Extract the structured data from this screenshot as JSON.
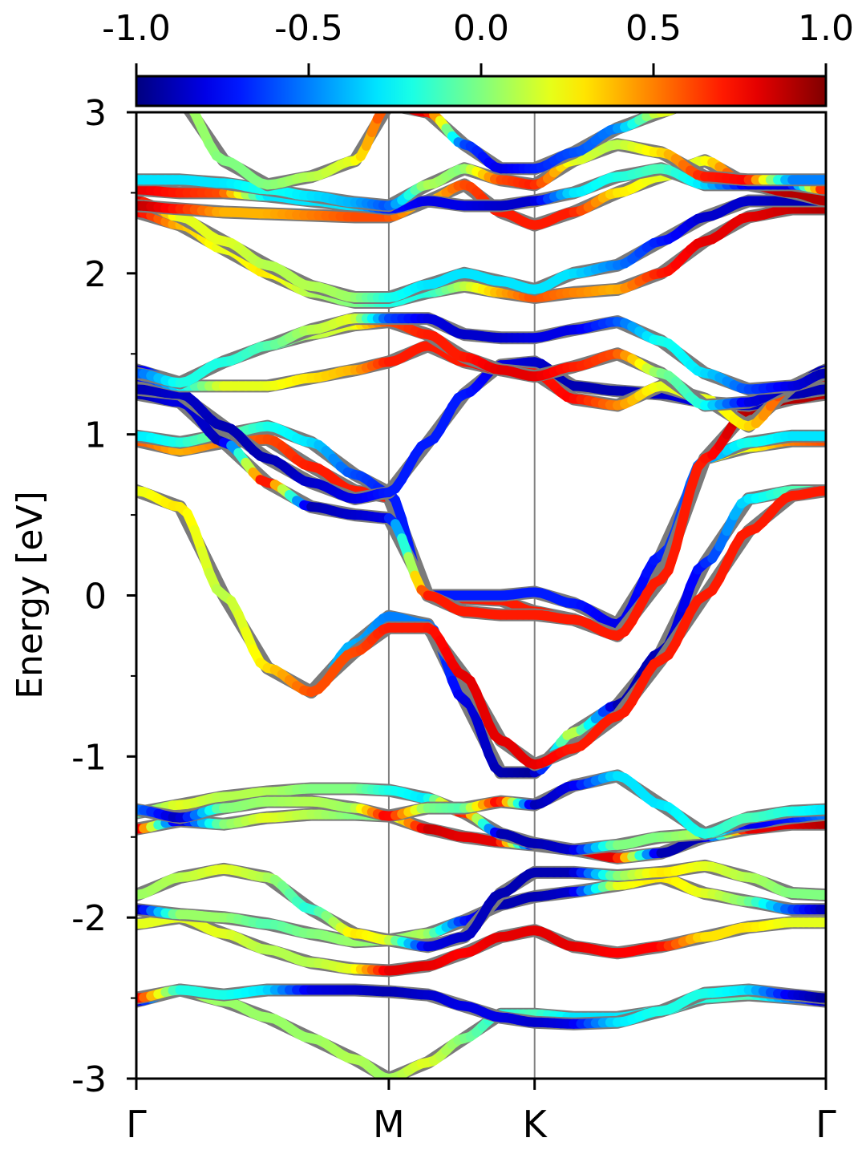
{
  "chart_data": {
    "type": "line",
    "ylabel": "Energy [eV]",
    "ylim": [
      -3,
      3
    ],
    "yticks": [
      -3,
      -2,
      -1,
      0,
      1,
      2,
      3
    ],
    "ytick_labels": [
      "-3",
      "-2",
      "-1",
      "0",
      "1",
      "2",
      "3"
    ],
    "xlim": [
      0,
      4.73
    ],
    "kpoints": [
      {
        "label": "Γ",
        "x": 0
      },
      {
        "label": "M",
        "x": 1.732
      },
      {
        "label": "K",
        "x": 2.732
      },
      {
        "label": "Γ",
        "x": 4.73
      }
    ],
    "colorbar": {
      "colormap": "jet",
      "range": [
        -1.0,
        1.0
      ],
      "ticks": [
        -1.0,
        -0.5,
        0.0,
        0.5,
        1.0
      ],
      "tick_labels": [
        "-1.0",
        "-0.5",
        "0.0",
        "0.5",
        "1.0"
      ]
    },
    "band_points_x": [
      0,
      0.3,
      0.6,
      0.9,
      1.2,
      1.5,
      1.732,
      2.0,
      2.25,
      2.5,
      2.732,
      3.0,
      3.3,
      3.6,
      3.9,
      4.2,
      4.5,
      4.73
    ],
    "bands": [
      {
        "energies": [
          -2.52,
          -2.45,
          -2.52,
          -2.62,
          -2.75,
          -2.88,
          -3.0,
          -2.9,
          -2.75,
          -2.6,
          -2.6,
          -2.62,
          -2.62,
          -2.58,
          -2.5,
          -2.48,
          -2.5,
          -2.52
        ],
        "color_values": [
          -0.9,
          0.1,
          0.05,
          0.05,
          0.05,
          0.1,
          0.05,
          0.2,
          0.0,
          -0.2,
          -0.1,
          -0.3,
          -0.3,
          -0.2,
          -0.2,
          -0.1,
          -0.5,
          -0.9
        ]
      },
      {
        "energies": [
          -2.5,
          -2.45,
          -2.48,
          -2.45,
          -2.45,
          -2.45,
          -2.46,
          -2.48,
          -2.55,
          -2.62,
          -2.65,
          -2.66,
          -2.65,
          -2.58,
          -2.47,
          -2.45,
          -2.48,
          -2.5
        ],
        "color_values": [
          0.8,
          -0.2,
          -0.2,
          -0.3,
          -0.8,
          -0.85,
          -0.9,
          -0.85,
          -0.8,
          -0.8,
          -0.85,
          -0.8,
          -0.3,
          -0.2,
          -0.2,
          -0.3,
          -0.8,
          -0.95
        ]
      },
      {
        "energies": [
          -2.04,
          -2.0,
          -2.1,
          -2.2,
          -2.28,
          -2.32,
          -2.33,
          -2.3,
          -2.22,
          -2.12,
          -2.08,
          -2.18,
          -2.22,
          -2.18,
          -2.12,
          -2.06,
          -2.03,
          -2.03
        ],
        "color_values": [
          0.2,
          0.2,
          0.2,
          0.1,
          0.1,
          0.2,
          0.8,
          0.8,
          0.75,
          0.8,
          0.8,
          0.8,
          0.75,
          0.75,
          0.3,
          0.3,
          0.2,
          0.2
        ]
      },
      {
        "energies": [
          -1.95,
          -1.98,
          -2.0,
          -2.04,
          -2.1,
          -2.15,
          -2.14,
          -2.1,
          -2.02,
          -1.92,
          -1.87,
          -1.84,
          -1.8,
          -1.75,
          -1.85,
          -1.9,
          -1.95,
          -1.95
        ],
        "color_values": [
          -0.95,
          0.05,
          0.05,
          -0.1,
          0.0,
          0.05,
          0.0,
          0.1,
          -0.7,
          -0.9,
          -0.9,
          -0.85,
          0.2,
          0.3,
          0.2,
          0.0,
          -0.6,
          -0.9
        ]
      },
      {
        "energies": [
          -1.86,
          -1.75,
          -1.7,
          -1.75,
          -1.95,
          -2.1,
          -2.14,
          -2.18,
          -2.12,
          -1.85,
          -1.72,
          -1.72,
          -1.74,
          -1.72,
          -1.68,
          -1.75,
          -1.85,
          -1.86
        ],
        "color_values": [
          0.05,
          0.1,
          0.2,
          0.1,
          -0.2,
          0.3,
          0.2,
          -0.8,
          -0.85,
          -0.9,
          -0.9,
          -0.9,
          0.0,
          0.3,
          0.2,
          0.1,
          0.0,
          0.0
        ]
      },
      {
        "energies": [
          -1.45,
          -1.4,
          -1.42,
          -1.38,
          -1.36,
          -1.36,
          -1.37,
          -1.45,
          -1.5,
          -1.53,
          -1.55,
          -1.58,
          -1.63,
          -1.6,
          -1.5,
          -1.45,
          -1.42,
          -1.42
        ],
        "color_values": [
          0.9,
          -0.9,
          0.0,
          0.2,
          0.1,
          0.0,
          0.0,
          0.85,
          0.8,
          0.8,
          -0.85,
          0.8,
          0.8,
          -0.9,
          -0.9,
          0.8,
          0.8,
          0.9
        ]
      },
      {
        "energies": [
          -1.35,
          -1.3,
          -1.25,
          -1.22,
          -1.2,
          -1.2,
          -1.21,
          -1.26,
          -1.35,
          -1.48,
          -1.54,
          -1.58,
          -1.55,
          -1.5,
          -1.48,
          -1.42,
          -1.38,
          -1.36
        ],
        "color_values": [
          -0.1,
          0.2,
          0.1,
          0.1,
          0.0,
          0.0,
          -0.2,
          -0.3,
          0.8,
          -0.9,
          -0.9,
          -0.85,
          0.0,
          0.0,
          0.1,
          -0.8,
          -0.7,
          -0.5
        ]
      },
      {
        "energies": [
          -1.33,
          -1.38,
          -1.32,
          -1.28,
          -1.28,
          -1.32,
          -1.37,
          -1.32,
          -1.32,
          -1.28,
          -1.3,
          -1.18,
          -1.12,
          -1.3,
          -1.48,
          -1.38,
          -1.34,
          -1.33
        ],
        "color_values": [
          -0.5,
          -0.9,
          0.0,
          0.05,
          0.1,
          0.05,
          0.8,
          0.0,
          -0.1,
          0.8,
          -0.9,
          -0.8,
          -0.3,
          -0.3,
          -0.2,
          -0.1,
          -0.2,
          -0.3
        ]
      },
      {
        "energies": [
          0.65,
          0.55,
          0.0,
          -0.45,
          -0.6,
          -0.3,
          -0.13,
          -0.18,
          -0.65,
          -1.1,
          -1.1,
          -0.85,
          -0.68,
          -0.35,
          0.2,
          0.6,
          0.65,
          0.65
        ],
        "color_values": [
          -0.1,
          0.2,
          0.2,
          -0.1,
          -0.4,
          -0.4,
          -0.5,
          -0.5,
          -0.8,
          -0.9,
          -0.95,
          0.2,
          -0.9,
          -0.9,
          -0.7,
          -0.3,
          -0.1,
          -0.1
        ]
      },
      {
        "energies": [
          0.65,
          0.55,
          0.0,
          -0.45,
          -0.6,
          -0.35,
          -0.2,
          -0.2,
          -0.5,
          -0.9,
          -1.05,
          -0.95,
          -0.75,
          -0.4,
          0.0,
          0.4,
          0.62,
          0.65
        ],
        "color_values": [
          0.2,
          0.3,
          0.1,
          0.3,
          0.6,
          0.6,
          0.7,
          0.7,
          0.8,
          0.8,
          0.8,
          0.7,
          0.7,
          0.7,
          0.7,
          0.7,
          0.7,
          0.7
        ]
      },
      {
        "energies": [
          0.96,
          0.9,
          0.95,
          0.97,
          0.8,
          0.65,
          0.61,
          0.0,
          -0.02,
          -0.03,
          -0.1,
          -0.15,
          -0.25,
          0.1,
          0.85,
          0.92,
          0.96,
          0.96
        ],
        "color_values": [
          0.6,
          0.4,
          0.5,
          0.6,
          0.7,
          0.7,
          0.7,
          0.7,
          0.7,
          0.7,
          0.7,
          0.7,
          0.7,
          0.7,
          0.3,
          0.2,
          0.5,
          0.6
        ]
      },
      {
        "energies": [
          0.99,
          0.95,
          1.0,
          1.05,
          0.95,
          0.75,
          0.64,
          0.0,
          0.0,
          0.0,
          0.02,
          -0.05,
          -0.18,
          0.25,
          0.85,
          0.95,
          0.99,
          0.99
        ],
        "color_values": [
          -0.3,
          -0.2,
          0.0,
          -0.2,
          -0.3,
          -0.6,
          -0.7,
          -0.7,
          -0.7,
          -0.7,
          -0.7,
          -0.7,
          -0.8,
          -0.7,
          -0.5,
          -0.2,
          -0.3,
          -0.3
        ]
      },
      {
        "energies": [
          1.25,
          1.2,
          0.95,
          0.7,
          0.55,
          0.5,
          0.48,
          0.0,
          -0.1,
          -0.12,
          -0.12,
          -0.15,
          -0.25,
          0.1,
          0.85,
          1.15,
          1.22,
          1.25
        ],
        "color_values": [
          -0.9,
          -0.8,
          -0.9,
          0.85,
          -0.9,
          -0.85,
          -0.8,
          0.7,
          0.7,
          0.7,
          0.7,
          0.7,
          0.7,
          0.7,
          0.7,
          0.9,
          0.9,
          0.9
        ]
      },
      {
        "energies": [
          1.28,
          1.25,
          1.05,
          0.85,
          0.7,
          0.6,
          0.64,
          0.95,
          1.25,
          1.43,
          1.45,
          1.3,
          1.27,
          1.25,
          1.2,
          1.18,
          1.25,
          1.28
        ],
        "color_values": [
          -0.9,
          -0.85,
          -0.9,
          -0.9,
          -0.85,
          -0.8,
          -0.7,
          -0.7,
          -0.7,
          -0.8,
          -0.85,
          -0.9,
          -0.9,
          -0.85,
          -0.8,
          -0.85,
          -0.9,
          -0.9
        ]
      },
      {
        "energies": [
          1.36,
          1.3,
          1.3,
          1.3,
          1.35,
          1.4,
          1.45,
          1.55,
          1.45,
          1.4,
          1.38,
          1.22,
          1.18,
          1.3,
          1.22,
          1.05,
          1.3,
          1.36
        ],
        "color_values": [
          -0.8,
          -0.3,
          0.2,
          0.2,
          0.3,
          0.4,
          0.7,
          0.7,
          0.7,
          0.8,
          0.7,
          0.75,
          0.5,
          0.2,
          0.2,
          0.3,
          0.7,
          0.8
        ]
      },
      {
        "energies": [
          1.4,
          1.32,
          1.45,
          1.55,
          1.62,
          1.68,
          1.7,
          1.62,
          1.48,
          1.4,
          1.36,
          1.42,
          1.5,
          1.38,
          1.18,
          1.2,
          1.3,
          1.4
        ],
        "color_values": [
          -0.9,
          -0.3,
          -0.3,
          -0.2,
          0.1,
          0.2,
          0.6,
          0.7,
          0.7,
          0.8,
          0.8,
          0.7,
          0.6,
          0.0,
          -0.2,
          -0.8,
          -0.9,
          -0.9
        ]
      },
      {
        "energies": [
          1.38,
          1.32,
          1.45,
          1.55,
          1.65,
          1.72,
          1.72,
          1.72,
          1.62,
          1.6,
          1.6,
          1.65,
          1.7,
          1.58,
          1.38,
          1.28,
          1.3,
          1.38
        ],
        "color_values": [
          -0.6,
          -0.2,
          -0.2,
          -0.1,
          0.1,
          0.2,
          -0.6,
          -0.8,
          -0.85,
          -0.85,
          -0.8,
          -0.8,
          -0.6,
          -0.2,
          -0.3,
          -0.6,
          -0.8,
          -0.9
        ]
      },
      {
        "energies": [
          2.38,
          2.3,
          2.15,
          2.0,
          1.88,
          1.82,
          1.82,
          1.88,
          1.92,
          1.88,
          1.85,
          1.88,
          1.9,
          2.0,
          2.2,
          2.35,
          2.4,
          2.4
        ],
        "color_values": [
          0.8,
          0.4,
          0.2,
          0.3,
          0.1,
          0.0,
          -0.2,
          -0.2,
          0.1,
          0.4,
          0.6,
          0.5,
          0.4,
          0.7,
          0.8,
          0.8,
          0.85,
          0.9
        ]
      },
      {
        "energies": [
          2.45,
          2.35,
          2.2,
          2.05,
          1.92,
          1.85,
          1.85,
          1.93,
          2.0,
          1.95,
          1.9,
          2.0,
          2.05,
          2.2,
          2.35,
          2.45,
          2.45,
          2.45
        ],
        "color_values": [
          0.85,
          0.2,
          0.2,
          0.1,
          0.1,
          0.05,
          -0.2,
          -0.3,
          -0.3,
          -0.3,
          -0.3,
          -0.3,
          -0.5,
          -0.7,
          -0.85,
          -0.85,
          -0.9,
          -0.9
        ]
      },
      {
        "energies": [
          2.42,
          2.4,
          2.38,
          2.37,
          2.36,
          2.35,
          2.35,
          2.45,
          2.55,
          2.38,
          2.3,
          2.38,
          2.5,
          2.6,
          2.7,
          2.55,
          2.5,
          2.45
        ],
        "color_values": [
          0.9,
          0.7,
          0.4,
          0.4,
          0.5,
          0.6,
          0.6,
          0.3,
          0.6,
          0.7,
          0.7,
          0.7,
          0.3,
          0.2,
          0.2,
          0.8,
          0.9,
          0.9
        ]
      },
      {
        "energies": [
          2.52,
          2.5,
          2.5,
          2.48,
          2.45,
          2.42,
          2.4,
          2.45,
          2.42,
          2.42,
          2.45,
          2.5,
          2.6,
          2.65,
          2.55,
          2.55,
          2.55,
          2.52
        ],
        "color_values": [
          0.8,
          0.7,
          0.6,
          -0.3,
          -0.3,
          -0.3,
          -0.7,
          -0.8,
          -0.8,
          -0.85,
          -0.85,
          -0.3,
          -0.2,
          -0.1,
          -0.3,
          -0.8,
          -0.8,
          0.8
        ]
      },
      {
        "energies": [
          2.58,
          2.58,
          2.56,
          2.52,
          2.48,
          2.44,
          2.42,
          2.55,
          2.65,
          2.58,
          2.55,
          2.7,
          2.8,
          2.75,
          2.6,
          2.58,
          2.58,
          2.58
        ],
        "color_values": [
          -0.3,
          -0.3,
          -0.3,
          -0.2,
          -0.3,
          -0.4,
          -0.6,
          0.1,
          0.0,
          0.6,
          0.7,
          0.2,
          0.1,
          0.3,
          0.7,
          0.75,
          -0.5,
          -0.5
        ]
      },
      {
        "energies": [
          3.3,
          3.1,
          2.7,
          2.55,
          2.6,
          2.7,
          3.05,
          3.0,
          2.8,
          2.65,
          2.65,
          2.75,
          2.9,
          3.0,
          3.1,
          3.2,
          3.3,
          3.3
        ],
        "color_values": [
          0.1,
          0.1,
          0.0,
          0.0,
          0.1,
          0.2,
          0.7,
          0.8,
          -0.6,
          -0.8,
          -0.7,
          -0.6,
          -0.5,
          0.2,
          0.2,
          0.2,
          0.1,
          0.1
        ]
      }
    ]
  }
}
